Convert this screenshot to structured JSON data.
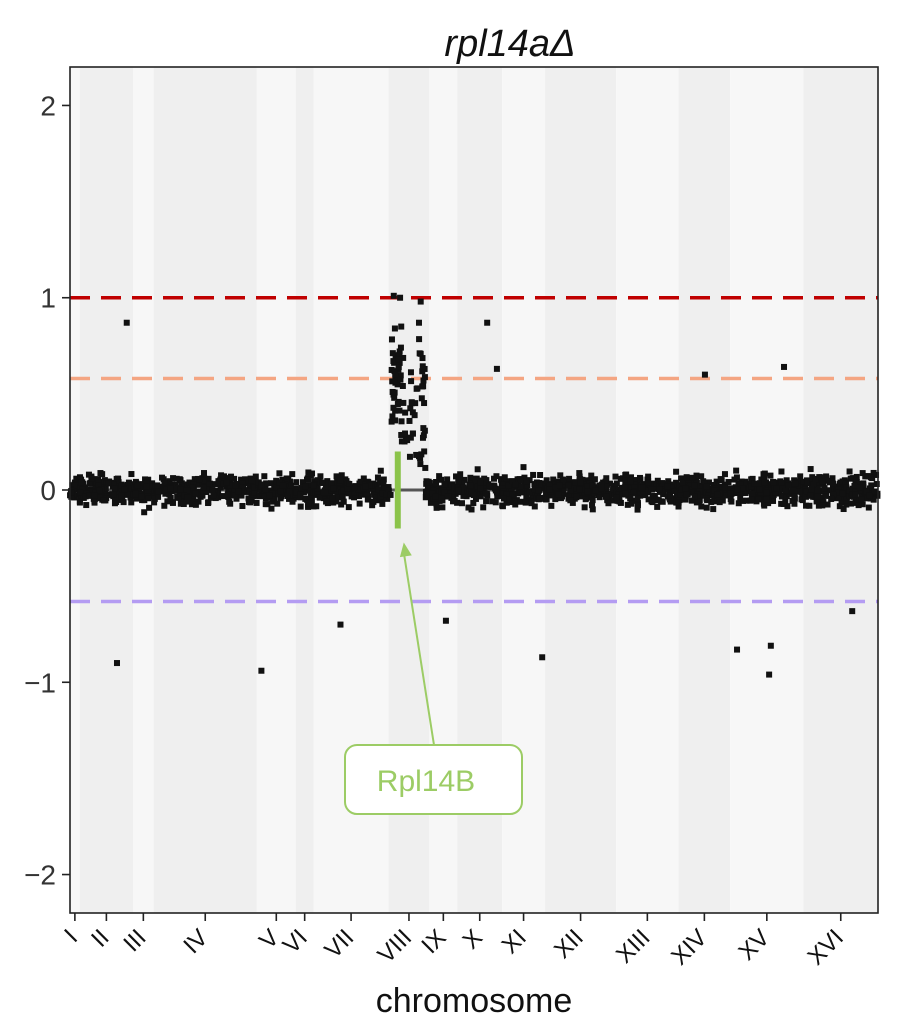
{
  "chart_data": {
    "type": "scatter",
    "title": "rpl14aΔ",
    "xlabel": "chromosome",
    "ylabel": "",
    "ylim": [
      -2.2,
      2.2
    ],
    "yticks": [
      {
        "value": 2,
        "label": "2"
      },
      {
        "value": 1,
        "label": "1"
      },
      {
        "value": 0,
        "label": "0"
      },
      {
        "value": -1,
        "label": "−1"
      },
      {
        "value": -2,
        "label": "−2"
      }
    ],
    "grid": false,
    "colors": {
      "points": "#111111",
      "baseline": "#555555",
      "line_upper_1": "#c00000",
      "line_upper_058": "#f4a582",
      "line_lower_058": "#b49cf2",
      "highlight": "#8bc34a",
      "band_light": "#f7f7f7",
      "band_dark": "#efefef"
    },
    "reference_lines": [
      {
        "y": 1.0,
        "style": "dashed",
        "color": "#c00000"
      },
      {
        "y": 0.58,
        "style": "dashed",
        "color": "#f4a582"
      },
      {
        "y": -0.58,
        "style": "dashed",
        "color": "#b49cf2"
      },
      {
        "y": 0,
        "style": "solid",
        "color": "#555555"
      }
    ],
    "chromosomes": [
      {
        "label": "I",
        "start": 0.0,
        "end": 1.7
      },
      {
        "label": "II",
        "start": 1.7,
        "end": 11.0
      },
      {
        "label": "III",
        "start": 11.0,
        "end": 14.6
      },
      {
        "label": "IV",
        "start": 14.6,
        "end": 32.6
      },
      {
        "label": "V",
        "start": 32.6,
        "end": 39.4
      },
      {
        "label": "VI",
        "start": 39.4,
        "end": 42.5
      },
      {
        "label": "VII",
        "start": 42.5,
        "end": 55.6
      },
      {
        "label": "VIII",
        "start": 55.6,
        "end": 62.7
      },
      {
        "label": "IX",
        "start": 62.7,
        "end": 67.6
      },
      {
        "label": "X",
        "start": 67.6,
        "end": 75.4
      },
      {
        "label": "XI",
        "start": 75.4,
        "end": 82.9
      },
      {
        "label": "XII",
        "start": 82.9,
        "end": 95.3
      },
      {
        "label": "XIII",
        "start": 95.3,
        "end": 106.2
      },
      {
        "label": "XIV",
        "start": 106.2,
        "end": 115.2
      },
      {
        "label": "XV",
        "start": 115.2,
        "end": 128.0
      },
      {
        "label": "XVI",
        "start": 128.0,
        "end": 141.0
      }
    ],
    "xrange": [
      0,
      141
    ],
    "highlight": {
      "label": "Rpl14B",
      "x": 57.2,
      "y_from": -0.2,
      "y_to": 0.2
    },
    "notable_points": [
      {
        "x": 56.5,
        "y": 1.01
      },
      {
        "x": 57.6,
        "y": 1.0
      },
      {
        "x": 61.2,
        "y": 0.98
      },
      {
        "x": 57.8,
        "y": 0.85
      },
      {
        "x": 56.7,
        "y": 0.84
      },
      {
        "x": 60.9,
        "y": 0.87
      },
      {
        "x": 9.9,
        "y": 0.87
      },
      {
        "x": 72.8,
        "y": 0.87
      },
      {
        "x": 74.5,
        "y": 0.63
      },
      {
        "x": 110.8,
        "y": 0.6
      },
      {
        "x": 124.6,
        "y": 0.64
      },
      {
        "x": 8.2,
        "y": -0.9
      },
      {
        "x": 33.4,
        "y": -0.94
      },
      {
        "x": 82.4,
        "y": -0.87
      },
      {
        "x": 116.4,
        "y": -0.83
      },
      {
        "x": 122.0,
        "y": -0.96
      },
      {
        "x": 122.3,
        "y": -0.81
      },
      {
        "x": 47.2,
        "y": -0.7
      },
      {
        "x": 65.6,
        "y": -0.68
      },
      {
        "x": 136.5,
        "y": -0.63
      }
    ]
  }
}
